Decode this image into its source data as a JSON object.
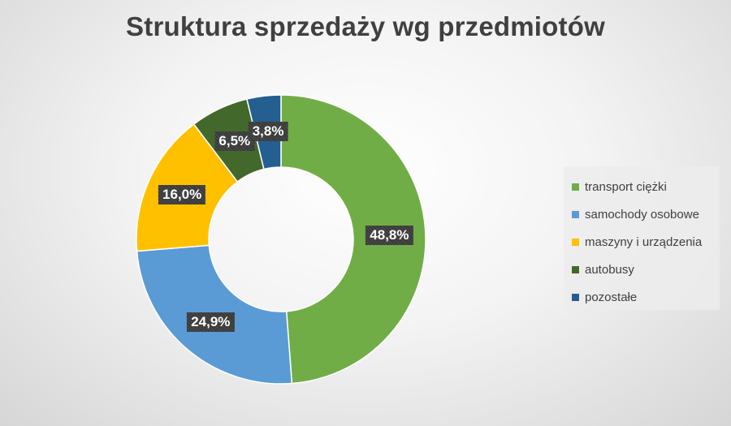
{
  "chart_data": {
    "type": "pie",
    "variant": "donut",
    "title": "Struktura sprzedaży wg przedmiotów",
    "legend_position": "right",
    "slices": [
      {
        "label": "transport ciężki",
        "value": 48.8,
        "value_label": "48,8%",
        "color": "#70AD47"
      },
      {
        "label": "samochody osobowe",
        "value": 24.9,
        "value_label": "24,9%",
        "color": "#5B9BD5"
      },
      {
        "label": "maszyny i urządzenia",
        "value": 16.0,
        "value_label": "16,0%",
        "color": "#FFC000"
      },
      {
        "label": "autobusy",
        "value": 6.5,
        "value_label": "6,5%",
        "color": "#43682B"
      },
      {
        "label": "pozostałe",
        "value": 3.8,
        "value_label": "3,8%",
        "color": "#255E91"
      }
    ]
  }
}
